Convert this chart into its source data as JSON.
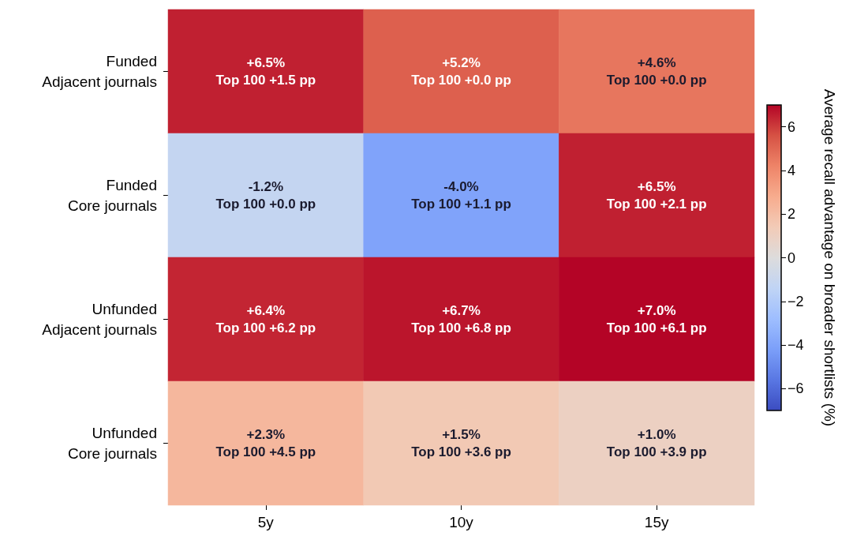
{
  "chart_data": {
    "type": "heatmap",
    "categories": [
      "5y",
      "10y",
      "15y"
    ],
    "y_categories": [
      "Funded\nAdjacent journals",
      "Funded\nCore journals",
      "Unfunded\nAdjacent journals",
      "Unfunded\nCore journals"
    ],
    "cells": [
      [
        6.5,
        5.2,
        4.6
      ],
      [
        -1.2,
        -4.0,
        6.5
      ],
      [
        6.4,
        6.7,
        7.0
      ],
      [
        2.3,
        1.5,
        1.0
      ]
    ],
    "cell_labels": [
      [
        "+6.5%\nTop 100 +1.5 pp",
        "+5.2%\nTop 100 +0.0 pp",
        "+4.6%\nTop 100 +0.0 pp"
      ],
      [
        "-1.2%\nTop 100 +0.0 pp",
        "-4.0%\nTop 100 +1.1 pp",
        "+6.5%\nTop 100 +2.1 pp"
      ],
      [
        "+6.4%\nTop 100 +6.2 pp",
        "+6.7%\nTop 100 +6.8 pp",
        "+7.0%\nTop 100 +6.1 pp"
      ],
      [
        "+2.3%\nTop 100 +4.5 pp",
        "+1.5%\nTop 100 +3.6 pp",
        "+1.0%\nTop 100 +3.9 pp"
      ]
    ],
    "clim": [
      -7,
      7
    ],
    "cticks": [
      {
        "value": -6,
        "label": "−6"
      },
      {
        "value": -4,
        "label": "−4"
      },
      {
        "value": -2,
        "label": "−2"
      },
      0,
      2,
      4,
      6
    ],
    "clabel": "Average recall advantage on broader shortlists (%)"
  }
}
